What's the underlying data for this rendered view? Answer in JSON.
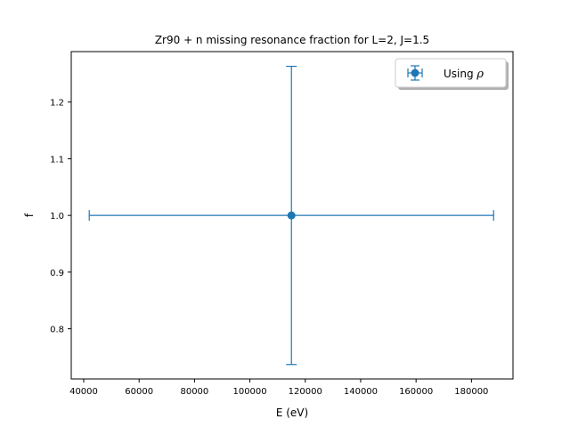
{
  "chart_data": {
    "type": "scatter",
    "title": "Zr90 + n missing resonance fraction for L=2, J=1.5",
    "xlabel": "E (eV)",
    "ylabel": "f",
    "xlim": [
      35500,
      195000
    ],
    "ylim": [
      0.7115,
      1.289
    ],
    "x_ticks": [
      40000,
      60000,
      80000,
      100000,
      120000,
      140000,
      160000,
      180000
    ],
    "x_tick_labels": [
      "40000",
      "60000",
      "80000",
      "100000",
      "120000",
      "140000",
      "160000",
      "180000"
    ],
    "y_ticks": [
      0.8,
      0.9,
      1.0,
      1.1,
      1.2
    ],
    "y_tick_labels": [
      "0.8",
      "0.9",
      "1.0",
      "1.1",
      "1.2"
    ],
    "grid": false,
    "legend_position": "top-right",
    "series": [
      {
        "name": "Using ρ",
        "color": "#1f77b4",
        "marker": "circle",
        "points": [
          {
            "x": 115000,
            "y": 1.0,
            "xerr": [
              73000,
              73000
            ],
            "yerr": [
              0.263,
              0.263
            ]
          }
        ]
      }
    ]
  }
}
